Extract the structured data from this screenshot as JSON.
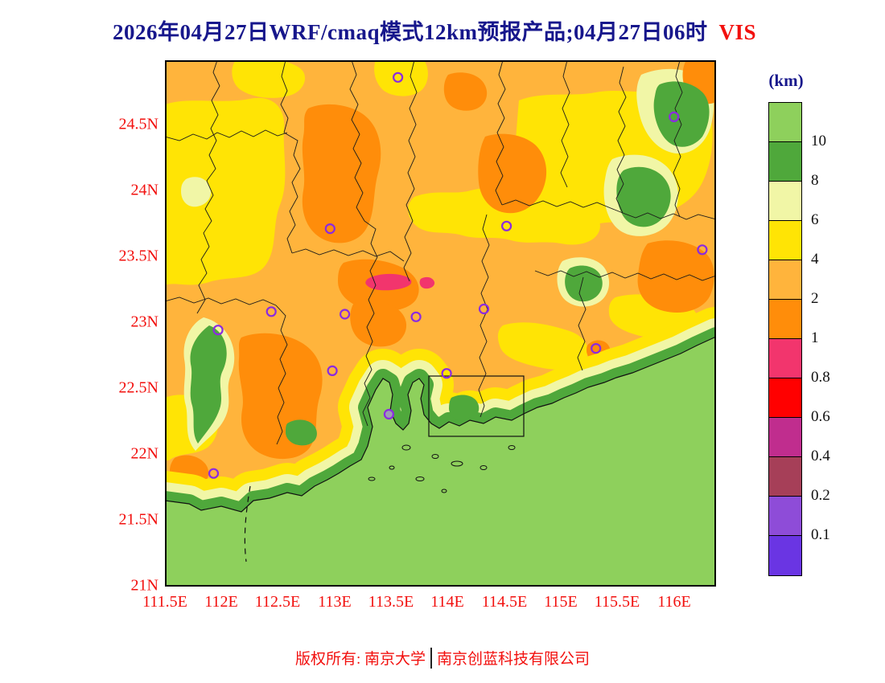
{
  "title": {
    "main": "2026年04月27日WRF/cmaq模式12km预报产品;04月27日06时",
    "variable": "VIS"
  },
  "colors": {
    "title-color": "#17178c",
    "axis-color": "#f2100e",
    "footer-color": "#f2100e",
    "legend-label-color": "#111111"
  },
  "legend": {
    "unit": "(km)",
    "levels": [
      "10",
      "8",
      "6",
      "4",
      "2",
      "1",
      "0.8",
      "0.6",
      "0.4",
      "0.2",
      "0.1"
    ],
    "colors": [
      "#8ed05c",
      "#4fa83b",
      "#f1f6a6",
      "#ffe405",
      "#ffb43c",
      "#ff8d0a",
      "#f2356d",
      "#ff0000",
      "#c02d8e",
      "#a63f58",
      "#8e4cd8",
      "#6a35e3"
    ]
  },
  "axes": {
    "lat_ticks": [
      "24.5N",
      "24N",
      "23.5N",
      "23N",
      "22.5N",
      "22N",
      "21.5N",
      "21N"
    ],
    "lon_ticks": [
      "111.5E",
      "112E",
      "112.5E",
      "113E",
      "113.5E",
      "114E",
      "114.5E",
      "115E",
      "115.5E",
      "116E"
    ]
  },
  "stations": {
    "ring_color": "#8b2be0",
    "filled_color": "#9d9db5",
    "points": [
      {
        "lon": 113.56,
        "lat": 24.87
      },
      {
        "lon": 116.0,
        "lat": 24.57
      },
      {
        "lon": 112.96,
        "lat": 23.72
      },
      {
        "lon": 114.52,
        "lat": 23.74
      },
      {
        "lon": 116.25,
        "lat": 23.56
      },
      {
        "lon": 112.44,
        "lat": 23.09
      },
      {
        "lon": 113.09,
        "lat": 23.07
      },
      {
        "lon": 113.72,
        "lat": 23.05
      },
      {
        "lon": 114.32,
        "lat": 23.11
      },
      {
        "lon": 111.97,
        "lat": 22.95
      },
      {
        "lon": 115.31,
        "lat": 22.81
      },
      {
        "lon": 112.98,
        "lat": 22.64
      },
      {
        "lon": 113.99,
        "lat": 22.62
      },
      {
        "lon": 113.48,
        "lat": 22.31,
        "filled": true
      },
      {
        "lon": 111.93,
        "lat": 21.86
      }
    ]
  },
  "footer": {
    "left": "版权所有: 南京大学",
    "right": "南京创蓝科技有限公司"
  }
}
